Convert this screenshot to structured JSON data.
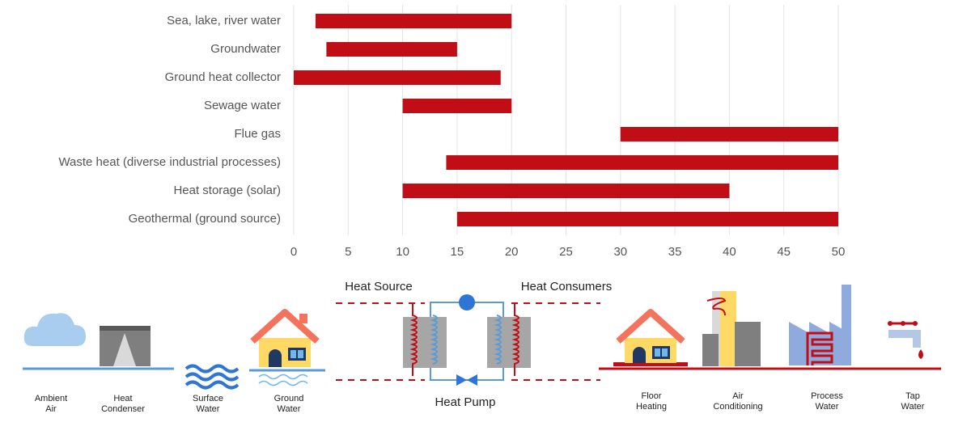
{
  "chart_data": {
    "type": "range-bar",
    "categories": [
      "Sea, lake, river water",
      "Groundwater",
      "Ground heat collector",
      "Sewage water",
      "Flue gas",
      "Waste heat (diverse industrial processes)",
      "Heat storage (solar)",
      "Geothermal (ground source)"
    ],
    "values": [
      [
        2,
        20
      ],
      [
        3,
        15
      ],
      [
        0,
        19
      ],
      [
        10,
        20
      ],
      [
        30,
        50
      ],
      [
        14,
        50
      ],
      [
        10,
        40
      ],
      [
        15,
        50
      ]
    ],
    "color": "#c00d16",
    "xlim": [
      0,
      50
    ],
    "xticks": [
      0,
      5,
      10,
      15,
      20,
      25,
      30,
      35,
      40,
      45,
      50
    ],
    "grid": true
  },
  "diagram": {
    "heat_source": "Heat Source",
    "heat_consumers": "Heat Consumers",
    "heat_pump": "Heat Pump",
    "sources": [
      {
        "lines": [
          "Ambient",
          "Air"
        ]
      },
      {
        "lines": [
          "Heat",
          "Condenser"
        ]
      },
      {
        "lines": [
          "Surface",
          "Water"
        ]
      },
      {
        "lines": [
          "Ground",
          "Water"
        ]
      }
    ],
    "consumers": [
      {
        "lines": [
          "Floor",
          "Heating"
        ]
      },
      {
        "lines": [
          "Air",
          "Conditioning"
        ]
      },
      {
        "lines": [
          "Process",
          "Water"
        ]
      },
      {
        "lines": [
          "Tap",
          "Water"
        ]
      }
    ]
  }
}
